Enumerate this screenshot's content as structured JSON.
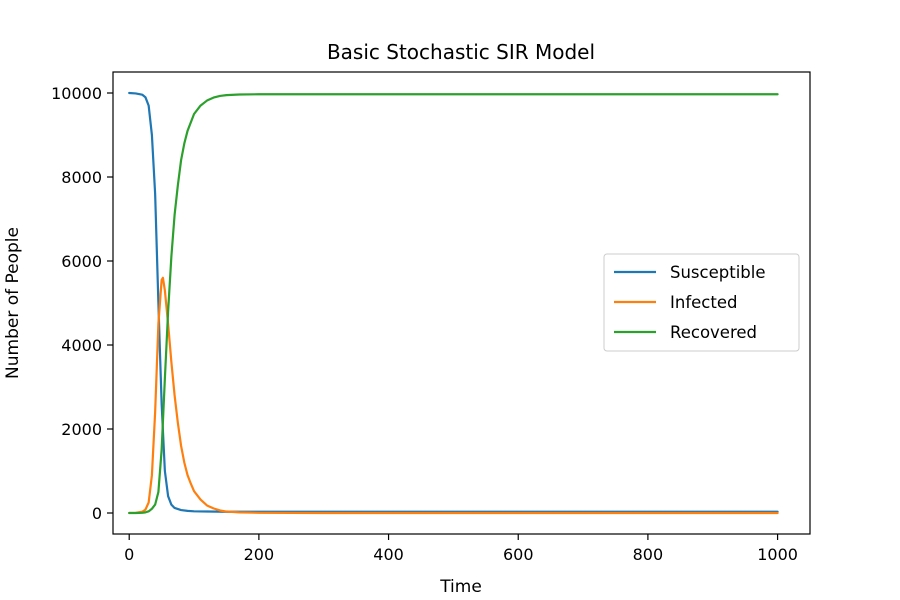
{
  "chart_data": {
    "type": "line",
    "title": "Basic Stochastic SIR Model",
    "xlabel": "Time",
    "ylabel": "Number of People",
    "xlim": [
      -25,
      1050
    ],
    "ylim": [
      -500,
      10500
    ],
    "xticks": [
      0,
      200,
      400,
      600,
      800,
      1000
    ],
    "yticks": [
      0,
      2000,
      4000,
      6000,
      8000,
      10000
    ],
    "grid": false,
    "legend_position": "center-right",
    "series": [
      {
        "name": "Susceptible",
        "color": "#1f77b4",
        "x": [
          0,
          10,
          20,
          25,
          30,
          35,
          40,
          45,
          50,
          55,
          60,
          65,
          70,
          80,
          90,
          100,
          120,
          150,
          200,
          300,
          500,
          700,
          1000
        ],
        "y": [
          10000,
          9990,
          9960,
          9900,
          9700,
          9000,
          7600,
          5000,
          2600,
          1000,
          400,
          200,
          120,
          70,
          50,
          40,
          35,
          30,
          30,
          30,
          30,
          30,
          30
        ]
      },
      {
        "name": "Infected",
        "color": "#ff7f0e",
        "x": [
          0,
          10,
          20,
          25,
          30,
          35,
          40,
          45,
          50,
          52,
          55,
          60,
          65,
          70,
          75,
          80,
          85,
          90,
          95,
          100,
          110,
          120,
          130,
          140,
          150,
          170,
          200,
          300,
          500,
          700,
          1000
        ],
        "y": [
          1,
          5,
          30,
          80,
          250,
          900,
          2400,
          4500,
          5550,
          5600,
          5300,
          4500,
          3600,
          2800,
          2150,
          1600,
          1200,
          900,
          700,
          520,
          320,
          180,
          110,
          60,
          35,
          15,
          5,
          0,
          0,
          0,
          0
        ]
      },
      {
        "name": "Recovered",
        "color": "#2ca02c",
        "x": [
          0,
          10,
          20,
          25,
          30,
          35,
          40,
          45,
          50,
          55,
          60,
          65,
          70,
          75,
          80,
          85,
          90,
          100,
          110,
          120,
          130,
          140,
          150,
          170,
          200,
          250,
          300,
          500,
          700,
          1000
        ],
        "y": [
          0,
          0,
          5,
          15,
          40,
          100,
          200,
          500,
          1500,
          3200,
          4800,
          6100,
          7100,
          7800,
          8400,
          8800,
          9100,
          9500,
          9700,
          9820,
          9890,
          9930,
          9950,
          9965,
          9970,
          9970,
          9970,
          9970,
          9970,
          9970
        ]
      }
    ]
  }
}
